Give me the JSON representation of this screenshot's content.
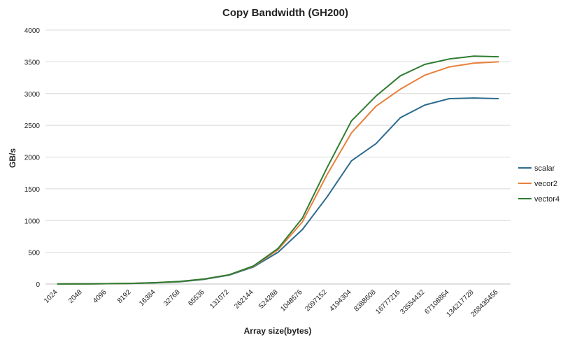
{
  "chart_data": {
    "type": "line",
    "title": "Copy Bandwidth (GH200)",
    "xlabel": "Array size(bytes)",
    "ylabel": "GB/s",
    "ylim": [
      0,
      4000
    ],
    "yticks": [
      0,
      500,
      1000,
      1500,
      2000,
      2500,
      3000,
      3500,
      4000
    ],
    "grid": true,
    "legend_position": "right",
    "categories": [
      "1024",
      "2048",
      "4096",
      "8192",
      "16384",
      "32768",
      "65536",
      "131072",
      "262144",
      "524288",
      "1048576",
      "2097152",
      "4194304",
      "8388608",
      "16777216",
      "33554432",
      "67108864",
      "134217728",
      "268435456"
    ],
    "series": [
      {
        "name": "scalar",
        "color": "#2f6b8f",
        "values": [
          1,
          2,
          5,
          10,
          20,
          35,
          75,
          140,
          270,
          500,
          860,
          1370,
          1940,
          2210,
          2620,
          2820,
          2920,
          2930,
          2920
        ]
      },
      {
        "name": "vecor2",
        "color": "#e8803c",
        "values": [
          1,
          2,
          5,
          10,
          22,
          40,
          80,
          145,
          280,
          540,
          980,
          1720,
          2380,
          2800,
          3070,
          3290,
          3420,
          3480,
          3500
        ]
      },
      {
        "name": "vector4",
        "color": "#2f7d32",
        "values": [
          1,
          2,
          5,
          10,
          22,
          42,
          80,
          145,
          285,
          560,
          1040,
          1830,
          2570,
          2960,
          3280,
          3460,
          3545,
          3590,
          3580
        ]
      }
    ]
  }
}
